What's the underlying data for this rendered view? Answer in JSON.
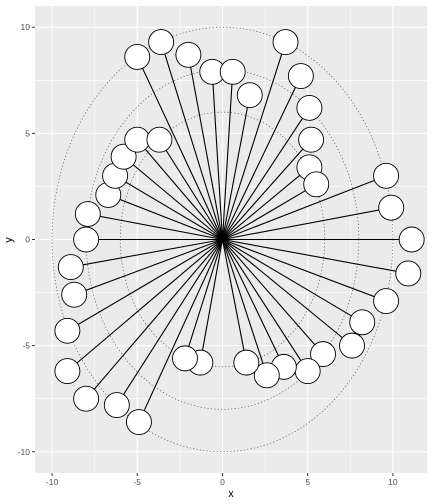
{
  "chart_data": {
    "type": "scatter",
    "title": "",
    "xlabel": "x",
    "ylabel": "y",
    "xlim": [
      -11,
      12
    ],
    "ylim": [
      -11,
      11
    ],
    "xticks": [
      -10,
      -5,
      0,
      5,
      10
    ],
    "yticks": [
      -10,
      -5,
      0,
      5,
      10
    ],
    "x_tick_labels": [
      "-10",
      "-5",
      "0",
      "5",
      "10"
    ],
    "y_tick_labels": [
      "-10",
      "-5",
      "0",
      "5",
      "10"
    ],
    "grid": true,
    "origin": [
      0,
      0
    ],
    "reference_circles_radius": [
      6,
      8,
      10
    ],
    "points": [
      {
        "x": 11.1,
        "y": 0.0
      },
      {
        "x": 10.9,
        "y": -1.6
      },
      {
        "x": 9.9,
        "y": 1.5
      },
      {
        "x": 9.6,
        "y": 3.0
      },
      {
        "x": 9.6,
        "y": -2.9
      },
      {
        "x": 8.2,
        "y": -3.9
      },
      {
        "x": 7.6,
        "y": -5.0
      },
      {
        "x": 5.9,
        "y": -5.4
      },
      {
        "x": 5.0,
        "y": -6.2
      },
      {
        "x": 3.6,
        "y": -6.0
      },
      {
        "x": 2.6,
        "y": -6.4
      },
      {
        "x": 1.4,
        "y": -5.8
      },
      {
        "x": -1.3,
        "y": -5.8
      },
      {
        "x": -2.2,
        "y": -5.6
      },
      {
        "x": -4.9,
        "y": -8.6
      },
      {
        "x": -6.2,
        "y": -7.8
      },
      {
        "x": -8.0,
        "y": -7.5
      },
      {
        "x": -9.1,
        "y": -6.2
      },
      {
        "x": -9.1,
        "y": -4.3
      },
      {
        "x": -8.7,
        "y": -2.6
      },
      {
        "x": -8.9,
        "y": -1.3
      },
      {
        "x": -8.0,
        "y": 0.0
      },
      {
        "x": -7.9,
        "y": 1.2
      },
      {
        "x": -6.7,
        "y": 2.1
      },
      {
        "x": -6.3,
        "y": 3.0
      },
      {
        "x": -5.8,
        "y": 3.9
      },
      {
        "x": -5.0,
        "y": 4.7
      },
      {
        "x": -3.7,
        "y": 4.7
      },
      {
        "x": -5.0,
        "y": 8.6
      },
      {
        "x": -3.6,
        "y": 9.3
      },
      {
        "x": -2.0,
        "y": 8.7
      },
      {
        "x": -0.6,
        "y": 7.9
      },
      {
        "x": 0.6,
        "y": 7.9
      },
      {
        "x": 1.6,
        "y": 6.8
      },
      {
        "x": 3.7,
        "y": 9.3
      },
      {
        "x": 4.6,
        "y": 7.7
      },
      {
        "x": 5.1,
        "y": 6.2
      },
      {
        "x": 5.2,
        "y": 4.7
      },
      {
        "x": 5.1,
        "y": 3.4
      },
      {
        "x": 5.5,
        "y": 2.6
      }
    ]
  }
}
